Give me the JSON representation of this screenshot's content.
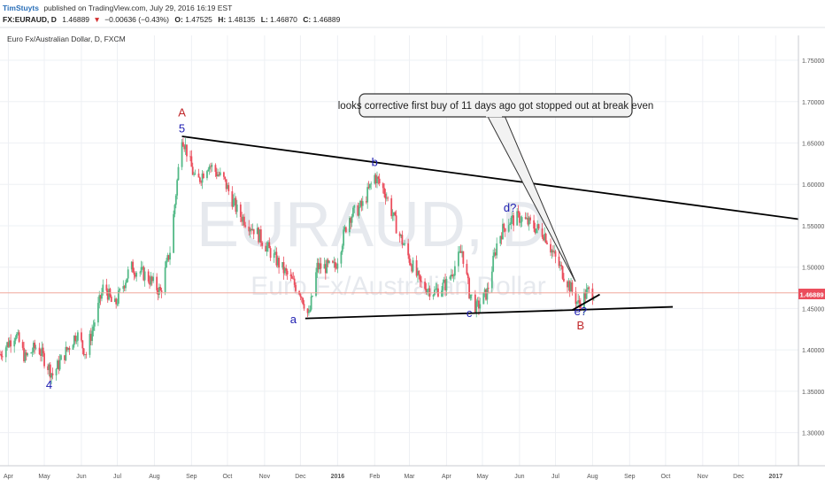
{
  "header": {
    "author": "TimStuyts",
    "published_text": "published on TradingView.com, July 29, 2016 16:19 EST",
    "symbol": "FX:EURAUD, D",
    "last": "1.46889",
    "change": "−0.00636 (−0.43%)",
    "o_label": "O:",
    "o_value": "1.47525",
    "h_label": "H:",
    "h_value": "1.48135",
    "l_label": "L:",
    "l_value": "1.46870",
    "c_label": "C:",
    "c_value": "1.46889"
  },
  "chart_title": "Euro Fx/Australian Dollar, D, FXCM",
  "watermark": {
    "symbol": "EURAUD, D",
    "name": "Euro Fx/Australian Dollar"
  },
  "price_badge": "1.46889",
  "callout_text": "looks corrective first buy of 11 days ago got stopped out at break even",
  "colors": {
    "up": "#53b987",
    "down": "#eb4d5c",
    "wave_blue": "#1c1cb0",
    "wave_red": "#c0282b",
    "grid": "#eef0f4",
    "price_line": "#f0a79c",
    "badge": "#eb4d5c",
    "author": "#2a6fb8",
    "down_arrow": "#d33030"
  },
  "chart_data": {
    "type": "candlestick",
    "title": "Euro Fx/Australian Dollar, D, FXCM",
    "x_tick_labels": [
      "Apr",
      "May",
      "Jun",
      "Jul",
      "Aug",
      "Sep",
      "Oct",
      "Nov",
      "Dec",
      "2016",
      "Feb",
      "Mar",
      "Apr",
      "May",
      "Jun",
      "Jul",
      "Aug",
      "Sep",
      "Oct",
      "Nov",
      "Dec",
      "2017"
    ],
    "x_ticks": [
      "2015-04-01",
      "2015-05-01",
      "2015-06-01",
      "2015-07-01",
      "2015-08-01",
      "2015-09-01",
      "2015-10-01",
      "2015-11-01",
      "2015-12-01",
      "2016-01-01",
      "2016-02-01",
      "2016-03-01",
      "2016-04-01",
      "2016-05-01",
      "2016-06-01",
      "2016-07-01",
      "2016-08-01",
      "2016-09-01",
      "2016-10-01",
      "2016-11-01",
      "2016-12-01",
      "2017-01-01"
    ],
    "y_ticks": [
      "1.30000",
      "1.35000",
      "1.40000",
      "1.45000",
      "1.50000",
      "1.55000",
      "1.60000",
      "1.65000",
      "1.70000",
      "1.75000"
    ],
    "ylim": [
      1.26,
      1.78
    ],
    "xlim": [
      "2015-03-25",
      "2017-01-20"
    ],
    "last_price": 1.46889,
    "price_path": [
      [
        "2015-03-25",
        1.395
      ],
      [
        "2015-04-07",
        1.42
      ],
      [
        "2015-04-15",
        1.39
      ],
      [
        "2015-04-25",
        1.405
      ],
      [
        "2015-05-08",
        1.37
      ],
      [
        "2015-05-20",
        1.4
      ],
      [
        "2015-05-28",
        1.42
      ],
      [
        "2015-06-05",
        1.395
      ],
      [
        "2015-06-20",
        1.48
      ],
      [
        "2015-06-28",
        1.45
      ],
      [
        "2015-07-12",
        1.5
      ],
      [
        "2015-07-25",
        1.49
      ],
      [
        "2015-08-06",
        1.47
      ],
      [
        "2015-08-14",
        1.52
      ],
      [
        "2015-08-24",
        1.66
      ],
      [
        "2015-09-05",
        1.6
      ],
      [
        "2015-09-15",
        1.625
      ],
      [
        "2015-09-28",
        1.605
      ],
      [
        "2015-10-10",
        1.565
      ],
      [
        "2015-10-24",
        1.545
      ],
      [
        "2015-11-05",
        1.52
      ],
      [
        "2015-11-20",
        1.49
      ],
      [
        "2015-12-01",
        1.47
      ],
      [
        "2015-12-08",
        1.44
      ],
      [
        "2015-12-15",
        1.5
      ],
      [
        "2015-12-30",
        1.5
      ],
      [
        "2016-01-10",
        1.56
      ],
      [
        "2016-01-22",
        1.575
      ],
      [
        "2016-02-01",
        1.61
      ],
      [
        "2016-02-10",
        1.59
      ],
      [
        "2016-02-20",
        1.545
      ],
      [
        "2016-03-01",
        1.51
      ],
      [
        "2016-03-10",
        1.48
      ],
      [
        "2016-03-22",
        1.47
      ],
      [
        "2016-04-01",
        1.48
      ],
      [
        "2016-04-14",
        1.52
      ],
      [
        "2016-04-20",
        1.47
      ],
      [
        "2016-04-26",
        1.45
      ],
      [
        "2016-05-05",
        1.47
      ],
      [
        "2016-05-14",
        1.535
      ],
      [
        "2016-05-22",
        1.555
      ],
      [
        "2016-06-01",
        1.56
      ],
      [
        "2016-06-12",
        1.55
      ],
      [
        "2016-06-22",
        1.54
      ],
      [
        "2016-07-01",
        1.51
      ],
      [
        "2016-07-12",
        1.48
      ],
      [
        "2016-07-20",
        1.455
      ],
      [
        "2016-07-28",
        1.47
      ],
      [
        "2016-08-02",
        1.46889
      ]
    ],
    "wave_labels": [
      {
        "text": "A",
        "date": "2015-08-24",
        "price": 1.682,
        "color": "red"
      },
      {
        "text": "5",
        "date": "2015-08-24",
        "price": 1.663,
        "color": "blue"
      },
      {
        "text": "b",
        "date": "2016-02-01",
        "price": 1.622,
        "color": "blue"
      },
      {
        "text": "d?",
        "date": "2016-05-24",
        "price": 1.567,
        "color": "blue"
      },
      {
        "text": "a",
        "date": "2015-11-25",
        "price": 1.432,
        "color": "blue"
      },
      {
        "text": "c",
        "date": "2016-04-20",
        "price": 1.44,
        "color": "blue"
      },
      {
        "text": "e?",
        "date": "2016-07-22",
        "price": 1.442,
        "color": "blue"
      },
      {
        "text": "B",
        "date": "2016-07-22",
        "price": 1.425,
        "color": "red"
      },
      {
        "text": "4",
        "date": "2015-05-05",
        "price": 1.353,
        "color": "blue"
      }
    ],
    "trendlines": [
      {
        "from": [
          "2015-08-24",
          1.658
        ],
        "to": [
          "2017-01-20",
          1.558
        ]
      },
      {
        "from": [
          "2015-12-05",
          1.438
        ],
        "to": [
          "2016-10-07",
          1.452
        ]
      },
      {
        "from": [
          "2016-07-15",
          1.448
        ],
        "to": [
          "2016-08-07",
          1.467
        ]
      }
    ]
  }
}
